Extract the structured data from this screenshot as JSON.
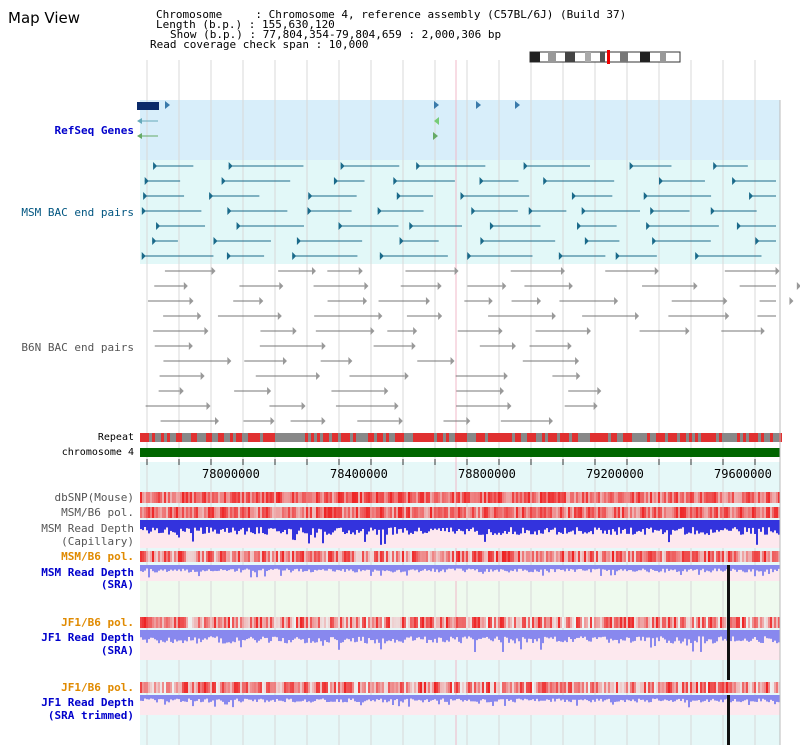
{
  "title": "Map View",
  "info": {
    "chromosome": "Chromosome     : Chromosome 4, reference assembly (C57BL/6J) (Build 37)",
    "length": "Length (b.p.) : 155,630,120",
    "show": "Show (b.p.) : 77,804,354-79,804,659 : 2,000,306 bp",
    "coverage": "Read coverage check span : 10,000"
  },
  "tracks": {
    "refseq": "RefSeq Genes",
    "msm_bac": "MSM BAC end pairs",
    "b6n_bac": "B6N BAC end pairs",
    "repeat": "Repeat",
    "chrom": "chromosome 4",
    "dbsnp": "dbSNP(Mouse)",
    "msm_pol": "MSM/B6 pol.",
    "msm_depth_cap_1": "MSM Read Depth",
    "msm_depth_cap_2": "(Capillary)",
    "msm_pol2": "MSM/B6 pol.",
    "msm_depth_sra_1": "MSM Read Depth",
    "msm_depth_sra_2": "(SRA)",
    "jf1_pol": "JF1/B6 pol.",
    "jf1_depth_sra_1": "JF1 Read Depth",
    "jf1_depth_sra_2": "(SRA)",
    "jf1_pol2": "JF1/B6 pol.",
    "jf1_depth_trim_1": "JF1 Read Depth",
    "jf1_depth_trim_2": "(SRA trimmed)"
  },
  "axis": {
    "ticks": [
      "78000000",
      "78400000",
      "78800000",
      "79200000",
      "79600000"
    ]
  },
  "colors": {
    "refseq_bg": "#d8eefa",
    "msm_bg": "#e2f8f8",
    "b6n_bg": "#ffffff",
    "repeat_red": "#e03030",
    "repeat_gray": "#888888",
    "chrom_green": "#006600",
    "axis_bg": "#e6f8f8",
    "snp_red": "#ee3333",
    "depth_blue": "#3333dd",
    "depth_light": "#8888ee",
    "jf1_bg": "#e8f8f8",
    "msm_sra_bg": "#eefaee"
  }
}
